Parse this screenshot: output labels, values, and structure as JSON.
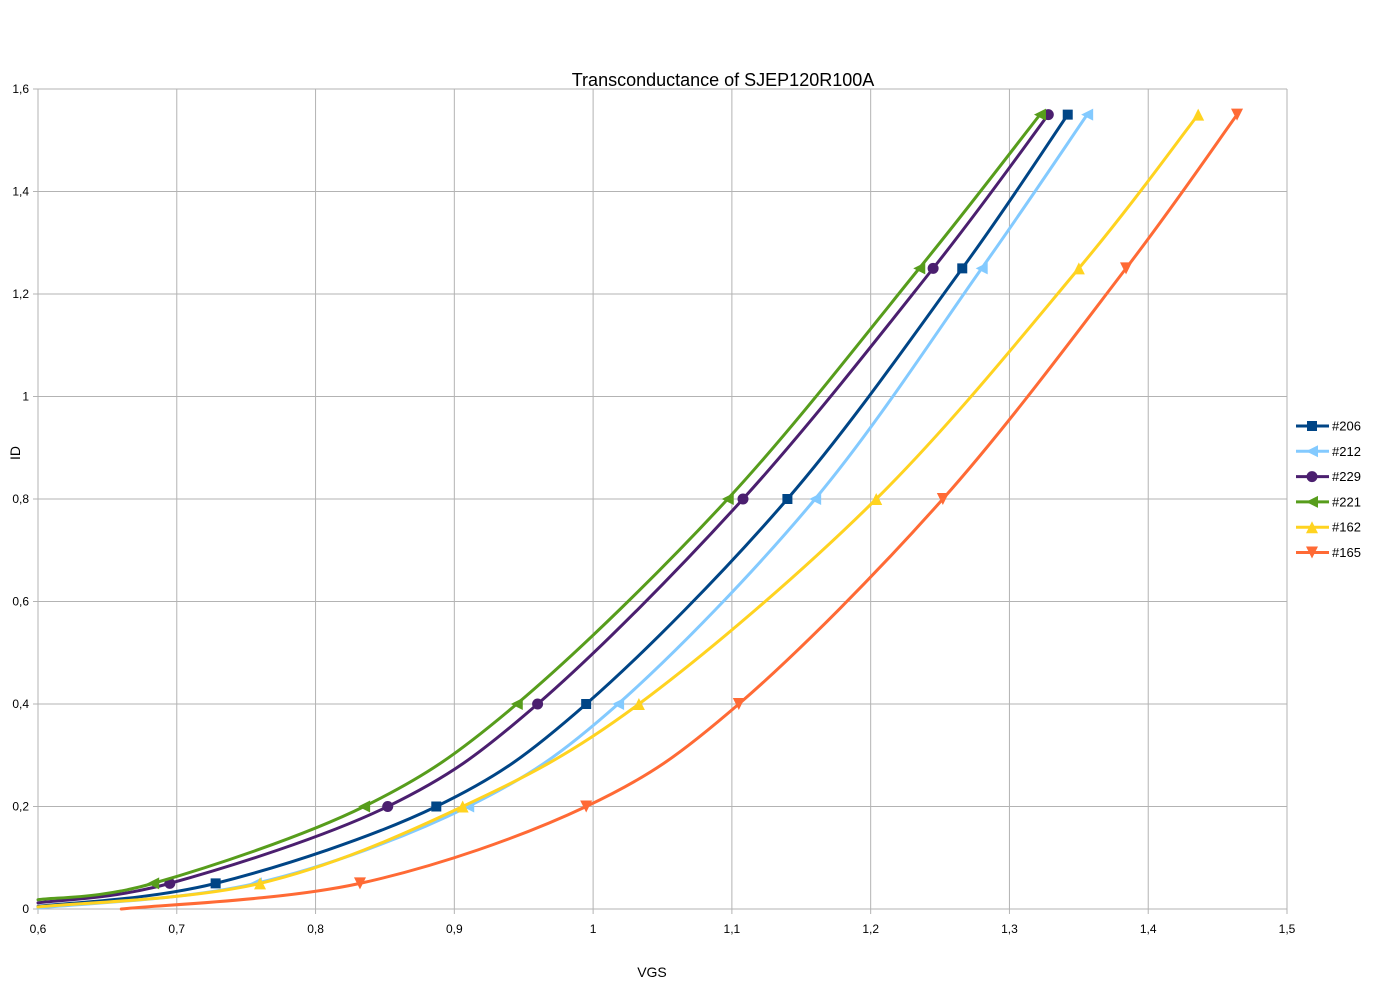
{
  "chart_data": {
    "type": "line",
    "title": "Transconductance of SJEP120R100A",
    "xlabel": "VGS",
    "ylabel": "ID",
    "xlim": [
      0.6,
      1.5
    ],
    "ylim": [
      0,
      1.6
    ],
    "x_ticks": [
      "0,6",
      "0,7",
      "0,8",
      "0,9",
      "1",
      "1,1",
      "1,2",
      "1,3",
      "1,4",
      "1,5"
    ],
    "y_ticks": [
      "0",
      "0,2",
      "0,4",
      "0,6",
      "0,8",
      "1",
      "1,2",
      "1,4",
      "1,6"
    ],
    "grid": true,
    "legend_position": "right",
    "series": [
      {
        "name": "#206",
        "color": "#004586",
        "marker": "square",
        "points": [
          [
            0.6,
            0.005
          ],
          [
            0.728,
            0.05
          ],
          [
            0.887,
            0.2
          ],
          [
            0.995,
            0.4
          ],
          [
            1.14,
            0.8
          ],
          [
            1.266,
            1.25
          ],
          [
            1.342,
            1.55
          ]
        ]
      },
      {
        "name": "#212",
        "color": "#83caff",
        "marker": "triangle-left",
        "points": [
          [
            0.6,
            0.002
          ],
          [
            0.757,
            0.05
          ],
          [
            0.91,
            0.2
          ],
          [
            1.018,
            0.4
          ],
          [
            1.16,
            0.8
          ],
          [
            1.28,
            1.25
          ],
          [
            1.356,
            1.55
          ]
        ]
      },
      {
        "name": "#229",
        "color": "#4b1f6f",
        "marker": "circle",
        "points": [
          [
            0.6,
            0.012
          ],
          [
            0.695,
            0.05
          ],
          [
            0.852,
            0.2
          ],
          [
            0.96,
            0.4
          ],
          [
            1.108,
            0.8
          ],
          [
            1.245,
            1.25
          ],
          [
            1.328,
            1.55
          ]
        ]
      },
      {
        "name": "#221",
        "color": "#579d1c",
        "marker": "triangle-left",
        "points": [
          [
            0.6,
            0.018
          ],
          [
            0.683,
            0.05
          ],
          [
            0.835,
            0.2
          ],
          [
            0.945,
            0.4
          ],
          [
            1.097,
            0.8
          ],
          [
            1.235,
            1.25
          ],
          [
            1.322,
            1.55
          ]
        ]
      },
      {
        "name": "#162",
        "color": "#ffd320",
        "marker": "triangle-up",
        "points": [
          [
            0.6,
            0.004
          ],
          [
            0.76,
            0.05
          ],
          [
            0.906,
            0.2
          ],
          [
            1.033,
            0.4
          ],
          [
            1.204,
            0.8
          ],
          [
            1.35,
            1.25
          ],
          [
            1.436,
            1.55
          ]
        ]
      },
      {
        "name": "#165",
        "color": "#ff6a35",
        "marker": "triangle-down",
        "points": [
          [
            0.66,
            0.0
          ],
          [
            0.832,
            0.05
          ],
          [
            0.995,
            0.2
          ],
          [
            1.105,
            0.4
          ],
          [
            1.252,
            0.8
          ],
          [
            1.384,
            1.25
          ],
          [
            1.464,
            1.55
          ]
        ]
      }
    ]
  }
}
